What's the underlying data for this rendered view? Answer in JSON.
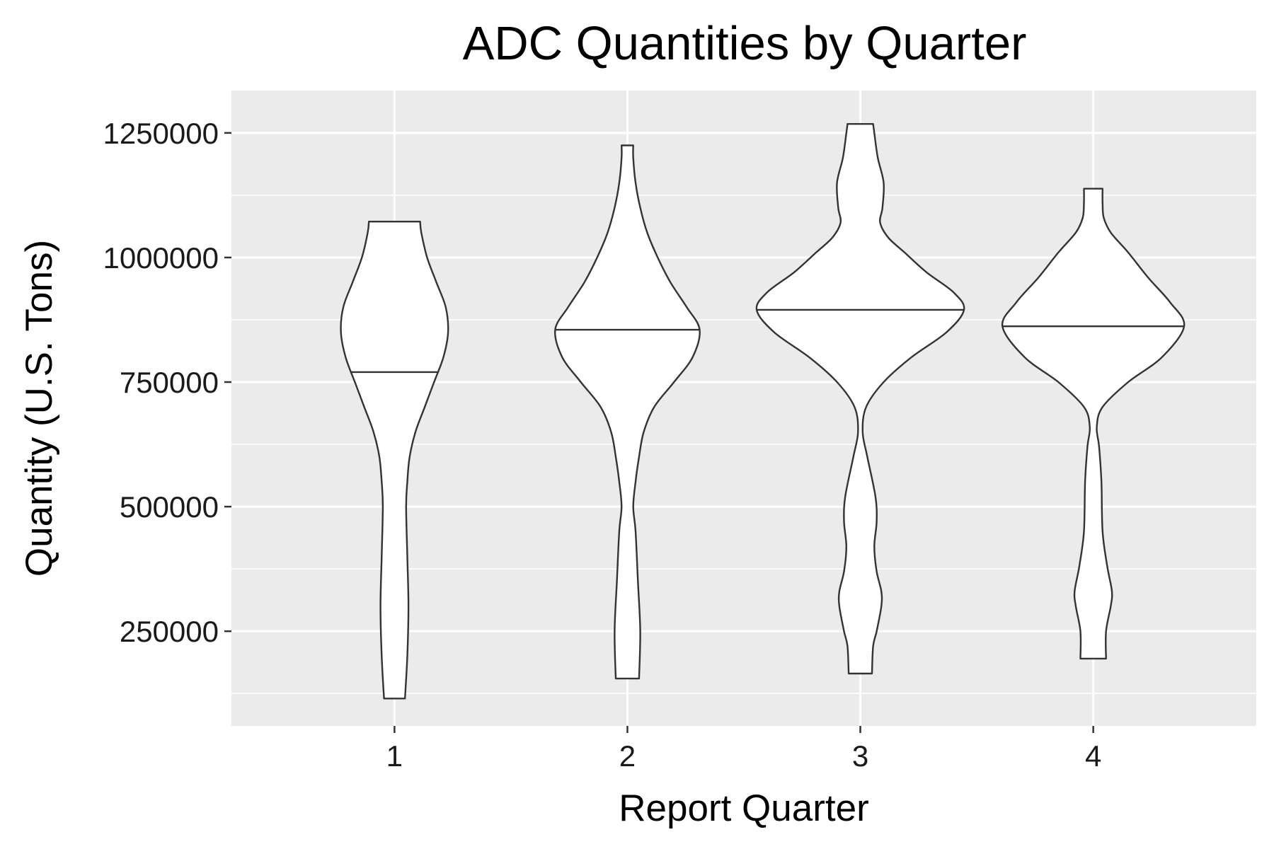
{
  "chart_data": {
    "type": "violin",
    "title": "ADC Quantities by Quarter",
    "xlabel": "Report Quarter",
    "ylabel": "Quantity (U.S. Tons)",
    "categories": [
      "1",
      "2",
      "3",
      "4"
    ],
    "ylim": [
      60000,
      1335000
    ],
    "y_ticks": [
      250000,
      500000,
      750000,
      1000000,
      1250000
    ],
    "y_tick_labels": [
      "250000",
      "500000",
      "750000",
      "1000000",
      "1250000"
    ],
    "grid": true,
    "panel_background": "#ebebeb",
    "grid_color": "#ffffff",
    "outline_color": "#333333",
    "fill_color": "#ffffff",
    "violins": [
      {
        "category": "1",
        "min": 115000,
        "max": 1072000,
        "median": 770000,
        "density": [
          [
            115000,
            0.09
          ],
          [
            200000,
            0.11
          ],
          [
            300000,
            0.12
          ],
          [
            400000,
            0.11
          ],
          [
            500000,
            0.1
          ],
          [
            550000,
            0.11
          ],
          [
            600000,
            0.13
          ],
          [
            650000,
            0.18
          ],
          [
            700000,
            0.26
          ],
          [
            750000,
            0.34
          ],
          [
            800000,
            0.42
          ],
          [
            850000,
            0.46
          ],
          [
            900000,
            0.44
          ],
          [
            950000,
            0.36
          ],
          [
            1000000,
            0.28
          ],
          [
            1050000,
            0.23
          ],
          [
            1072000,
            0.22
          ]
        ]
      },
      {
        "category": "2",
        "min": 155000,
        "max": 1225000,
        "median": 855000,
        "density": [
          [
            155000,
            0.1
          ],
          [
            250000,
            0.11
          ],
          [
            350000,
            0.09
          ],
          [
            450000,
            0.07
          ],
          [
            500000,
            0.05
          ],
          [
            550000,
            0.07
          ],
          [
            600000,
            0.1
          ],
          [
            650000,
            0.14
          ],
          [
            700000,
            0.23
          ],
          [
            750000,
            0.4
          ],
          [
            800000,
            0.56
          ],
          [
            855000,
            0.62
          ],
          [
            900000,
            0.51
          ],
          [
            950000,
            0.37
          ],
          [
            1000000,
            0.26
          ],
          [
            1050000,
            0.17
          ],
          [
            1100000,
            0.11
          ],
          [
            1150000,
            0.07
          ],
          [
            1200000,
            0.05
          ],
          [
            1225000,
            0.05
          ]
        ]
      },
      {
        "category": "3",
        "min": 165000,
        "max": 1268000,
        "median": 895000,
        "density": [
          [
            165000,
            0.1
          ],
          [
            220000,
            0.11
          ],
          [
            250000,
            0.14
          ],
          [
            300000,
            0.18
          ],
          [
            330000,
            0.18
          ],
          [
            370000,
            0.14
          ],
          [
            420000,
            0.12
          ],
          [
            470000,
            0.14
          ],
          [
            520000,
            0.13
          ],
          [
            600000,
            0.06
          ],
          [
            650000,
            0.02
          ],
          [
            700000,
            0.05
          ],
          [
            750000,
            0.2
          ],
          [
            800000,
            0.44
          ],
          [
            850000,
            0.74
          ],
          [
            895000,
            0.89
          ],
          [
            930000,
            0.8
          ],
          [
            970000,
            0.57
          ],
          [
            1010000,
            0.38
          ],
          [
            1040000,
            0.24
          ],
          [
            1070000,
            0.17
          ],
          [
            1100000,
            0.19
          ],
          [
            1150000,
            0.2
          ],
          [
            1200000,
            0.15
          ],
          [
            1250000,
            0.12
          ],
          [
            1268000,
            0.11
          ]
        ]
      },
      {
        "category": "4",
        "min": 195000,
        "max": 1138000,
        "median": 862000,
        "density": [
          [
            195000,
            0.11
          ],
          [
            250000,
            0.11
          ],
          [
            300000,
            0.15
          ],
          [
            330000,
            0.16
          ],
          [
            380000,
            0.12
          ],
          [
            450000,
            0.08
          ],
          [
            550000,
            0.07
          ],
          [
            620000,
            0.05
          ],
          [
            660000,
            0.03
          ],
          [
            700000,
            0.08
          ],
          [
            750000,
            0.3
          ],
          [
            800000,
            0.59
          ],
          [
            862000,
            0.78
          ],
          [
            910000,
            0.66
          ],
          [
            960000,
            0.47
          ],
          [
            1010000,
            0.3
          ],
          [
            1050000,
            0.15
          ],
          [
            1080000,
            0.09
          ],
          [
            1110000,
            0.08
          ],
          [
            1138000,
            0.08
          ]
        ]
      }
    ]
  }
}
